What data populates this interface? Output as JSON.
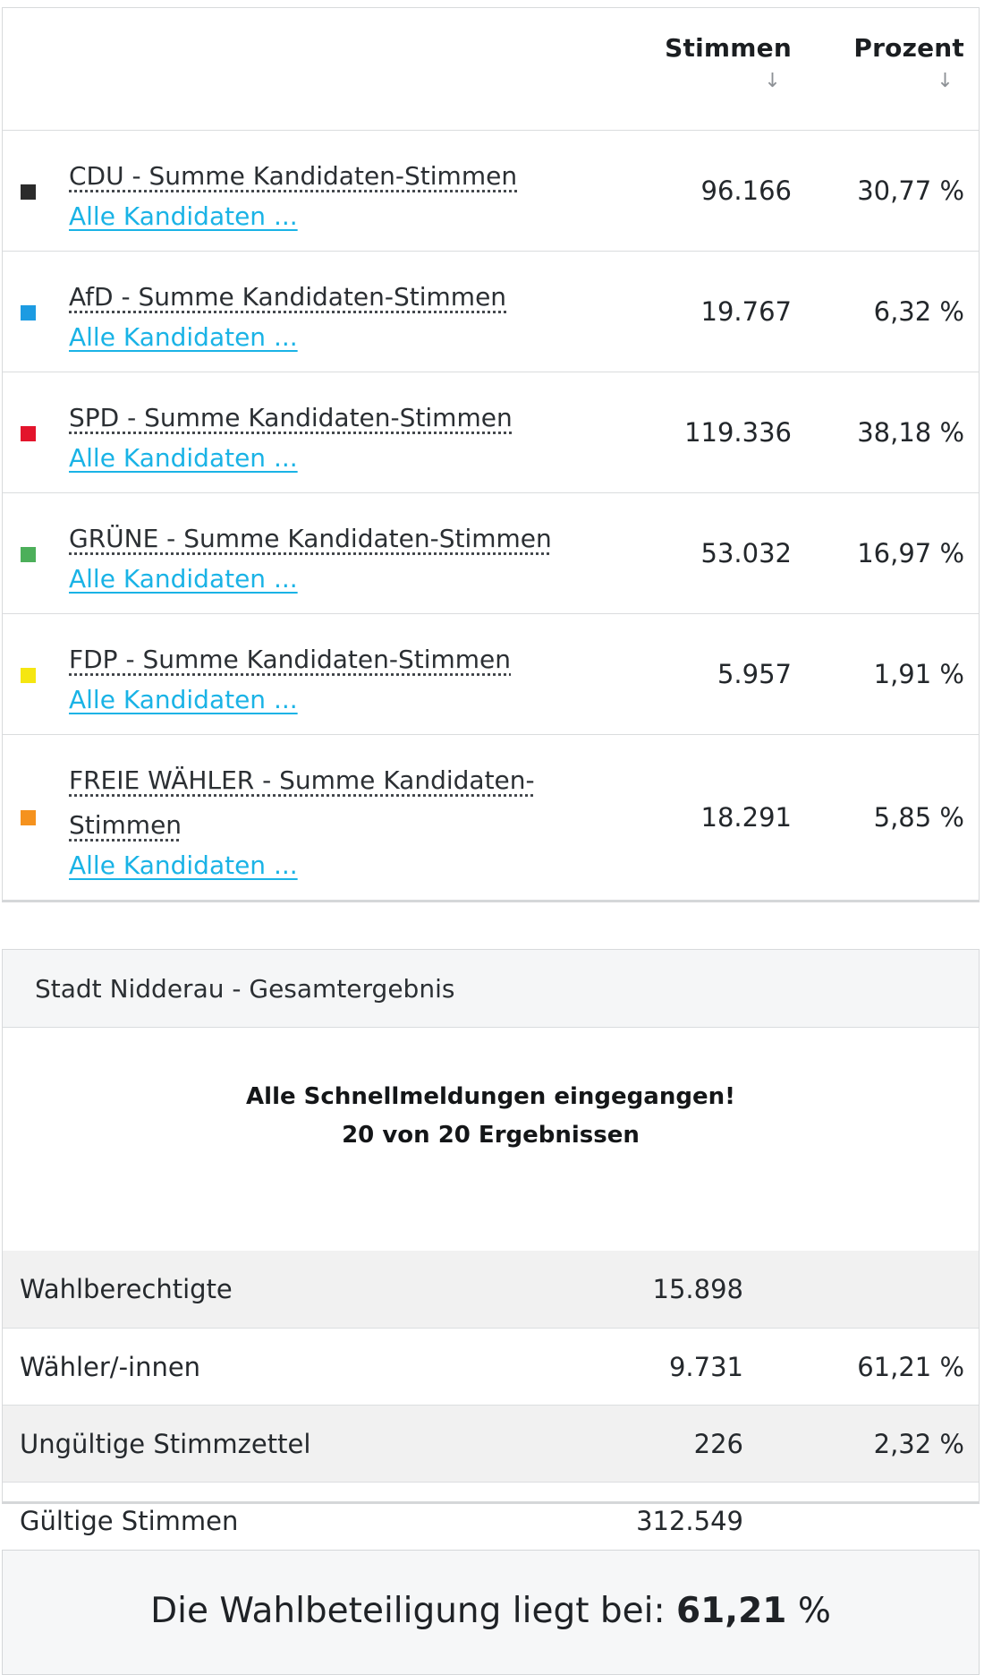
{
  "results": {
    "columns": {
      "votes": "Stimmen",
      "percent": "Prozent"
    },
    "candidates_link": "Alle Kandidaten ...",
    "parties": [
      {
        "name": "CDU - Summe Kandidaten-Stimmen",
        "color": "#2b2b2b",
        "votes": "96.166",
        "percent": "30,77 %"
      },
      {
        "name": "AfD - Summe Kandidaten-Stimmen",
        "color": "#1c9be2",
        "votes": "19.767",
        "percent": "6,32 %"
      },
      {
        "name": "SPD - Summe Kandidaten-Stimmen",
        "color": "#e3142c",
        "votes": "119.336",
        "percent": "38,18 %"
      },
      {
        "name": "GRÜNE - Summe Kandidaten-Stimmen",
        "color": "#4caf5a",
        "votes": "53.032",
        "percent": "16,97 %"
      },
      {
        "name": "FDP - Summe Kandidaten-Stimmen",
        "color": "#f5e611",
        "votes": "5.957",
        "percent": "1,91 %"
      },
      {
        "name": "FREIE WÄHLER - Summe Kandidaten-Stimmen",
        "color": "#f5921e",
        "votes": "18.291",
        "percent": "5,85 %"
      }
    ]
  },
  "summary": {
    "title": "Stadt Nidderau - Gesamtergebnis",
    "status_line1": "Alle Schnellmeldungen eingegangen!",
    "status_line2": "20 von 20 Ergebnissen",
    "rows": [
      {
        "label": "Wahlberechtigte",
        "value": "15.898",
        "percent": ""
      },
      {
        "label": "Wähler/-innen",
        "value": "9.731",
        "percent": "61,21 %"
      },
      {
        "label": "Ungültige Stimmzettel",
        "value": "226",
        "percent": "2,32 %"
      },
      {
        "label": "Gültige Stimmen",
        "value": "312.549",
        "percent": ""
      }
    ]
  },
  "turnout": {
    "prefix": "Die Wahlbeteiligung liegt bei:",
    "value": "61,21",
    "unit": "%"
  }
}
